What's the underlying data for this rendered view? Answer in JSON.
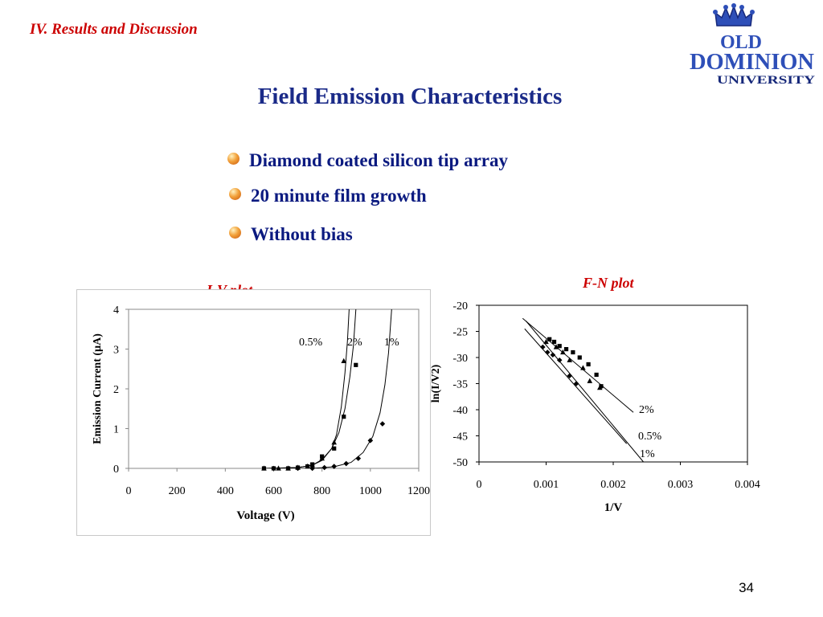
{
  "slide": {
    "section": "IV. Results and Discussion",
    "title": "Field Emission Characteristics",
    "bullets": [
      "Diamond coated  silicon tip array",
      "20 minute film growth",
      "Without bias"
    ],
    "page_number": "34",
    "logo": {
      "icon": "crown-icon",
      "line1": "OLD",
      "line2": "DOMINION",
      "line3": "UNIVERSITY"
    }
  },
  "colors": {
    "section": "#cc0000",
    "title": "#1a2a88",
    "bullet_text": "#0b1a80"
  },
  "chart_data": [
    {
      "type": "scatter",
      "title": "I-V plot",
      "xlabel": "Voltage (V)",
      "ylabel": "Emission Current (µA)",
      "xlim": [
        0,
        1200
      ],
      "ylim": [
        0,
        4
      ],
      "xticks": [
        0,
        200,
        400,
        600,
        800,
        1000,
        1200
      ],
      "yticks": [
        0,
        1,
        2,
        3,
        4
      ],
      "series": [
        {
          "name": "0.5%",
          "marker": "triangle",
          "points": [
            [
              560,
              0
            ],
            [
              620,
              0
            ],
            [
              660,
              0
            ],
            [
              700,
              0.02
            ],
            [
              740,
              0.05
            ],
            [
              760,
              0.08
            ],
            [
              800,
              0.25
            ],
            [
              850,
              0.65
            ],
            [
              890,
              2.7
            ]
          ],
          "curve": [
            [
              560,
              0
            ],
            [
              700,
              0.02
            ],
            [
              760,
              0.08
            ],
            [
              800,
              0.2
            ],
            [
              840,
              0.5
            ],
            [
              860,
              0.85
            ],
            [
              880,
              1.55
            ],
            [
              895,
              2.4
            ],
            [
              905,
              3.2
            ],
            [
              912,
              4.0
            ]
          ]
        },
        {
          "name": "2%",
          "marker": "square",
          "points": [
            [
              560,
              0
            ],
            [
              600,
              0
            ],
            [
              660,
              0
            ],
            [
              700,
              0.02
            ],
            [
              740,
              0.05
            ],
            [
              760,
              0.1
            ],
            [
              800,
              0.3
            ],
            [
              850,
              0.5
            ],
            [
              890,
              1.3
            ],
            [
              940,
              2.6
            ]
          ],
          "curve": [
            [
              560,
              0
            ],
            [
              700,
              0.02
            ],
            [
              760,
              0.08
            ],
            [
              800,
              0.22
            ],
            [
              840,
              0.5
            ],
            [
              870,
              0.9
            ],
            [
              895,
              1.5
            ],
            [
              915,
              2.3
            ],
            [
              930,
              3.1
            ],
            [
              940,
              4.0
            ]
          ]
        },
        {
          "name": "1%",
          "marker": "diamond",
          "points": [
            [
              600,
              0
            ],
            [
              700,
              0
            ],
            [
              760,
              0
            ],
            [
              810,
              0.02
            ],
            [
              850,
              0.05
            ],
            [
              900,
              0.12
            ],
            [
              950,
              0.25
            ],
            [
              1000,
              0.7
            ],
            [
              1050,
              1.12
            ]
          ],
          "curve": [
            [
              600,
              0
            ],
            [
              760,
              0
            ],
            [
              850,
              0.04
            ],
            [
              920,
              0.15
            ],
            [
              970,
              0.4
            ],
            [
              1010,
              0.8
            ],
            [
              1040,
              1.4
            ],
            [
              1060,
              2.1
            ],
            [
              1075,
              2.9
            ],
            [
              1088,
              4.0
            ]
          ]
        }
      ]
    },
    {
      "type": "scatter",
      "title": "F-N plot",
      "xlabel": "1/V",
      "ylabel": "ln(I/V2)",
      "xlim": [
        0,
        0.004
      ],
      "ylim": [
        -50,
        -20
      ],
      "xticks": [
        0,
        0.001,
        0.002,
        0.003,
        0.004
      ],
      "xtick_labels": [
        "0",
        "0.001",
        "0.002",
        "0.003",
        "0.004"
      ],
      "yticks": [
        -20,
        -25,
        -30,
        -35,
        -40,
        -45,
        -50
      ],
      "series": [
        {
          "name": "2%",
          "marker": "square",
          "points": [
            [
              0.00105,
              -26.5
            ],
            [
              0.00112,
              -27
            ],
            [
              0.0012,
              -27.8
            ],
            [
              0.0013,
              -28.4
            ],
            [
              0.0014,
              -29
            ],
            [
              0.0015,
              -30
            ],
            [
              0.00163,
              -31.3
            ],
            [
              0.00175,
              -33.3
            ],
            [
              0.00182,
              -35.5
            ]
          ],
          "fit": [
            [
              0.00065,
              -22.5
            ],
            [
              0.0023,
              -40.5
            ]
          ]
        },
        {
          "name": "0.5%",
          "marker": "triangle",
          "points": [
            [
              0.001,
              -27
            ],
            [
              0.00115,
              -28
            ],
            [
              0.00125,
              -29
            ],
            [
              0.00135,
              -30.5
            ],
            [
              0.00155,
              -32
            ],
            [
              0.00165,
              -34.5
            ],
            [
              0.0018,
              -35.8
            ]
          ],
          "fit": [
            [
              0.0007,
              -23
            ],
            [
              0.00245,
              -50
            ]
          ]
        },
        {
          "name": "1%",
          "marker": "diamond",
          "points": [
            [
              0.00095,
              -28
            ],
            [
              0.00102,
              -29
            ],
            [
              0.0011,
              -29.5
            ],
            [
              0.0012,
              -30.5
            ],
            [
              0.00135,
              -33.5
            ],
            [
              0.00145,
              -35
            ]
          ],
          "fit": [
            [
              0.00068,
              -24.5
            ],
            [
              0.0022,
              -46.5
            ]
          ]
        }
      ]
    }
  ]
}
